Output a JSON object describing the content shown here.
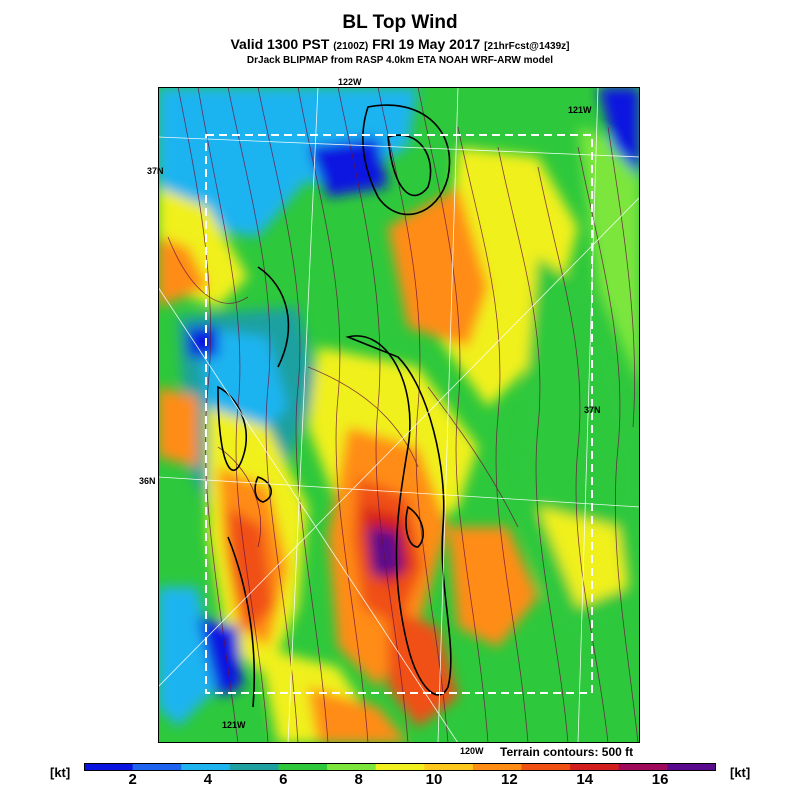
{
  "title": "BL Top Wind",
  "subtitle_valid": "Valid 1300 PST",
  "subtitle_utc": "(2100Z)",
  "subtitle_date": "FRI 19 May 2017",
  "subtitle_fcst": "[21hrFcst@1439z]",
  "credit": "DrJack BLIPMAP from RASP 4.0km ETA NOAH WRF-ARW model",
  "map_labels": {
    "lon_122w_top": "122W",
    "lon_121w_top": "121W",
    "lat_37n_left": "37N",
    "lat_37n_right": "37N",
    "lat_36n_left": "36N",
    "lon_121w_bottom": "121W",
    "lon_120w_bottom": "120W"
  },
  "terrain_note": "Terrain contours: 500 ft",
  "colorbar": {
    "unit_left": "[kt]",
    "unit_right": "[kt]",
    "ticks": [
      "2",
      "4",
      "6",
      "8",
      "10",
      "12",
      "14",
      "16"
    ],
    "colors": [
      "#0a14e0",
      "#1e64f0",
      "#1eb4f0",
      "#1ea0a0",
      "#2ec83c",
      "#7ce63c",
      "#f0f01e",
      "#ffc81e",
      "#ff8c14",
      "#f05014",
      "#d21e1e",
      "#a00a5a",
      "#5a0a8c"
    ]
  },
  "legend": {
    "field": "BL Top Wind speed",
    "units": "kt"
  }
}
